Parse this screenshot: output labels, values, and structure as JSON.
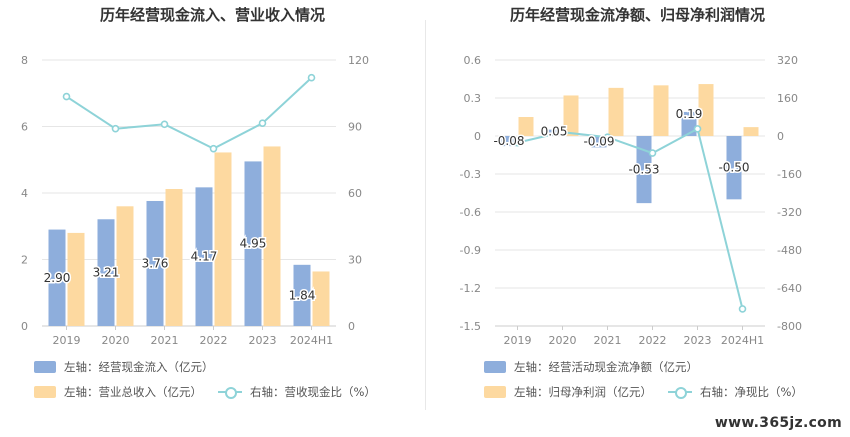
{
  "colors": {
    "bar_primary": "#8eaedc",
    "bar_secondary": "#fdd9a0",
    "line": "#8ed3d8",
    "grid": "#e6e6e6",
    "axis_text": "#888888"
  },
  "watermark": "www.365jz.com",
  "chart_data": [
    {
      "type": "bar+line",
      "title": "历年经营现金流入、营业收入情况",
      "categories": [
        "2019",
        "2020",
        "2021",
        "2022",
        "2023",
        "2024H1"
      ],
      "y_left": {
        "ticks": [
          "0",
          "2",
          "4",
          "6",
          "8"
        ],
        "ylim": [
          0,
          8
        ]
      },
      "y_right": {
        "ticks": [
          "0",
          "30",
          "60",
          "90",
          "120"
        ],
        "ylim": [
          0,
          120
        ]
      },
      "series": [
        {
          "name": "左轴：经营现金流入（亿元）",
          "kind": "bar",
          "axis": "left",
          "values": [
            2.9,
            3.21,
            3.76,
            4.17,
            4.95,
            1.84
          ],
          "labels": [
            "2.90",
            "3.21",
            "3.76",
            "4.17",
            "4.95",
            "1.84"
          ]
        },
        {
          "name": "左轴：营业总收入（亿元）",
          "kind": "bar",
          "axis": "left",
          "values": [
            2.8,
            3.6,
            4.12,
            5.22,
            5.4,
            1.64
          ]
        },
        {
          "name": "右轴：营收现金比（%）",
          "kind": "line",
          "axis": "right",
          "values": [
            103.5,
            89.0,
            91.0,
            80.0,
            91.5,
            112.0
          ]
        }
      ],
      "legend": [
        {
          "label": "左轴：经营现金流入（亿元）",
          "style": "bar_primary"
        },
        {
          "label": "左轴：营业总收入（亿元）",
          "style": "bar_secondary"
        },
        {
          "label": "右轴：营收现金比（%）",
          "style": "line"
        }
      ],
      "grid": true
    },
    {
      "type": "bar+line",
      "title": "历年经营现金流净额、归母净利润情况",
      "categories": [
        "2019",
        "2020",
        "2021",
        "2022",
        "2023",
        "2024H1"
      ],
      "y_left": {
        "ticks": [
          "0.6",
          "0.3",
          "0",
          "-0.3",
          "-0.6",
          "-0.9",
          "-1.2",
          "-1.5"
        ],
        "ylim": [
          -1.5,
          0.6
        ]
      },
      "y_right": {
        "ticks": [
          "320",
          "160",
          "0",
          "-160",
          "-320",
          "-480",
          "-640",
          "-800"
        ],
        "ylim": [
          -800,
          320
        ]
      },
      "series": [
        {
          "name": "左轴：经营活动现金流净额（亿元）",
          "kind": "bar",
          "axis": "left",
          "values": [
            -0.08,
            0.05,
            -0.09,
            -0.53,
            0.19,
            -0.5
          ],
          "labels": [
            "-0.08",
            "0.05",
            "-0.09",
            "-0.53",
            "0.19",
            "-0.50"
          ]
        },
        {
          "name": "左轴：归母净利润（亿元）",
          "kind": "bar",
          "axis": "left",
          "values": [
            0.15,
            0.32,
            0.38,
            0.4,
            0.41,
            0.07
          ]
        },
        {
          "name": "右轴：净现比（%）",
          "kind": "line",
          "axis": "right",
          "values": [
            -28,
            16,
            -5,
            -72,
            30,
            -728
          ]
        }
      ],
      "legend": [
        {
          "label": "左轴：经营活动现金流净额（亿元）",
          "style": "bar_primary"
        },
        {
          "label": "左轴：归母净利润（亿元）",
          "style": "bar_secondary"
        },
        {
          "label": "右轴：净现比（%）",
          "style": "line"
        }
      ],
      "grid": true
    }
  ]
}
